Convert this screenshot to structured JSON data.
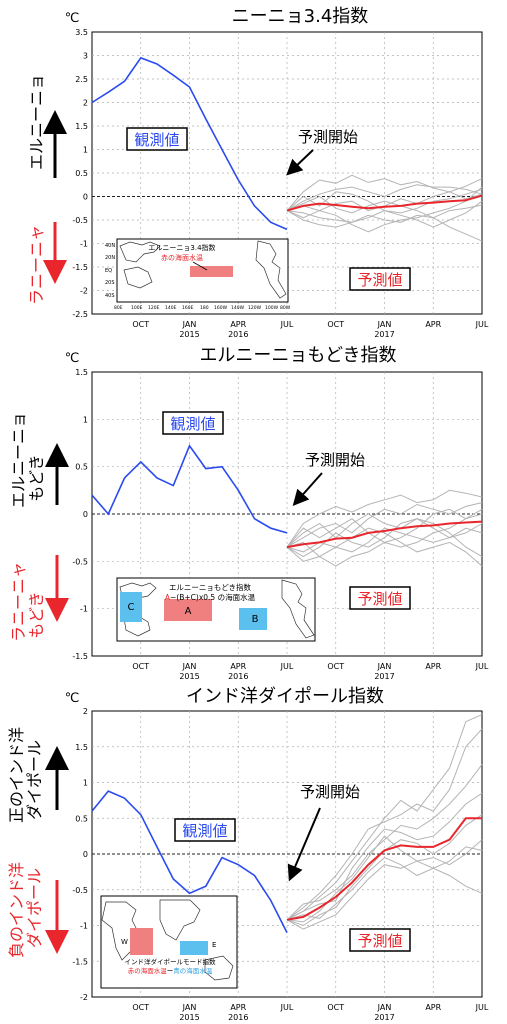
{
  "unit": "℃",
  "tick_labels": {
    "x_months": [
      "OCT",
      "JAN",
      "APR",
      "JUL",
      "OCT",
      "JAN",
      "APR",
      "JUL"
    ],
    "x_years": [
      "2015",
      "2016",
      "2017"
    ]
  },
  "annotations": {
    "observed": "観測値",
    "forecast": "予測値",
    "forecast_start": "予測開始"
  },
  "colors": {
    "observed": "#2b4bf0",
    "ensemble_mean": "#e8262b",
    "members": "#b4b4b4",
    "zero_line": "#222222",
    "grid": "#b0b0b0",
    "up_arrow": "#000000",
    "down_arrow": "#e8262b",
    "map_box_red": "#f08080",
    "map_box_blue": "#5bc0ee"
  },
  "chart_data": [
    {
      "type": "line",
      "title": "ニーニョ3.4指数",
      "ylim": [
        -2.5,
        3.5
      ],
      "yticks": [
        "3.5",
        "3",
        "2.5",
        "2",
        "1.5",
        "1",
        "0.5",
        "0",
        "-0.5",
        "-1",
        "-1.5",
        "-2",
        "-2.5"
      ],
      "up_label": "エルニーニョ",
      "down_label": "ラニーニャ",
      "x_axis": "months since Jul 2015 (0 = JUL 2015, 24 = JUL 2017)",
      "observed": {
        "x": [
          0,
          1,
          2,
          3,
          4,
          5,
          6,
          7,
          8,
          9,
          10,
          11,
          12
        ],
        "y": [
          2.0,
          2.22,
          2.45,
          2.95,
          2.82,
          2.58,
          2.33,
          1.65,
          1.0,
          0.35,
          -0.2,
          -0.55,
          -0.7
        ]
      },
      "ensemble_mean": {
        "x": [
          12,
          13,
          14,
          15,
          16,
          17,
          18,
          19,
          20,
          21,
          22,
          23,
          24
        ],
        "y": [
          -0.3,
          -0.2,
          -0.15,
          -0.18,
          -0.22,
          -0.25,
          -0.22,
          -0.2,
          -0.15,
          -0.13,
          -0.1,
          -0.08,
          0.02
        ]
      },
      "members_x": [
        12,
        13,
        14,
        15,
        16,
        17,
        18,
        19,
        20,
        21,
        22,
        23,
        24
      ],
      "members": [
        [
          -0.3,
          0.1,
          0.35,
          0.28,
          0.45,
          0.3,
          0.38,
          0.25,
          0.32,
          0.18,
          0.1,
          0.22,
          0.38
        ],
        [
          -0.3,
          -0.1,
          0.05,
          0.15,
          0.2,
          0.1,
          0.0,
          0.15,
          0.25,
          0.2,
          0.2,
          0.15,
          0.05
        ],
        [
          -0.3,
          -0.2,
          -0.3,
          -0.15,
          -0.1,
          -0.3,
          -0.2,
          -0.05,
          -0.15,
          0.0,
          0.1,
          -0.05,
          0.05
        ],
        [
          -0.3,
          -0.35,
          -0.45,
          -0.5,
          -0.55,
          -0.4,
          -0.5,
          -0.55,
          -0.4,
          -0.45,
          -0.3,
          -0.25,
          -0.18
        ],
        [
          -0.3,
          -0.45,
          -0.3,
          -0.4,
          -0.6,
          -0.75,
          -0.6,
          -0.5,
          -0.45,
          -0.35,
          -0.25,
          -0.1,
          0.2
        ],
        [
          -0.3,
          -0.5,
          -0.6,
          -0.65,
          -0.55,
          -0.45,
          -0.3,
          -0.35,
          -0.25,
          -0.1,
          -0.05,
          0.05,
          0.15
        ],
        [
          -0.3,
          -0.15,
          0.0,
          -0.25,
          -0.35,
          -0.2,
          -0.1,
          -0.2,
          -0.3,
          -0.45,
          -0.65,
          -0.8,
          -0.95
        ],
        [
          -0.3,
          0.0,
          -0.2,
          0.1,
          0.05,
          -0.1,
          -0.3,
          -0.4,
          -0.5,
          -0.65,
          -0.5,
          -0.35,
          -0.1
        ]
      ],
      "inset_map": {
        "title": "エルニーニョ3.4指数",
        "subtitle": "赤の海面水温",
        "lat_labels": [
          "40N",
          "20N",
          "EQ",
          "20S",
          "40S"
        ],
        "lon_labels": [
          "80E",
          "100E",
          "120E",
          "140E",
          "160E",
          "180",
          "160W",
          "140W",
          "120W",
          "100W",
          "80W"
        ]
      }
    },
    {
      "type": "line",
      "title": "エルニーニョもどき指数",
      "ylim": [
        -1.5,
        1.5
      ],
      "yticks": [
        "1.5",
        "1",
        "0.5",
        "0",
        "-0.5",
        "-1",
        "-1.5"
      ],
      "up_label": [
        "エルニーニョ",
        "もどき"
      ],
      "down_label": [
        "ラニーニャ",
        "もどき"
      ],
      "x_axis": "months since Jul 2015 (0 = JUL 2015, 24 = JUL 2017)",
      "observed": {
        "x": [
          0,
          1,
          2,
          3,
          4,
          5,
          6,
          7,
          8,
          9,
          10,
          11,
          12
        ],
        "y": [
          0.2,
          0.0,
          0.38,
          0.55,
          0.38,
          0.3,
          0.72,
          0.48,
          0.5,
          0.25,
          -0.05,
          -0.15,
          -0.2
        ]
      },
      "ensemble_mean": {
        "x": [
          12,
          13,
          14,
          15,
          16,
          17,
          18,
          19,
          20,
          21,
          22,
          23,
          24
        ],
        "y": [
          -0.35,
          -0.32,
          -0.3,
          -0.26,
          -0.25,
          -0.2,
          -0.18,
          -0.15,
          -0.13,
          -0.12,
          -0.1,
          -0.09,
          -0.08
        ]
      },
      "members_x": [
        12,
        13,
        14,
        15,
        16,
        17,
        18,
        19,
        20,
        21,
        22,
        23,
        24
      ],
      "members": [
        [
          -0.35,
          -0.1,
          0.0,
          0.08,
          0.02,
          0.1,
          0.15,
          0.2,
          0.12,
          0.15,
          0.25,
          0.22,
          0.18
        ],
        [
          -0.35,
          -0.25,
          -0.15,
          -0.1,
          -0.2,
          -0.05,
          0.05,
          0.0,
          0.1,
          0.05,
          0.0,
          0.08,
          0.12
        ],
        [
          -0.35,
          -0.45,
          -0.35,
          -0.2,
          -0.3,
          -0.35,
          -0.25,
          -0.1,
          -0.05,
          -0.15,
          -0.25,
          -0.2,
          -0.1
        ],
        [
          -0.35,
          -0.5,
          -0.45,
          -0.55,
          -0.45,
          -0.4,
          -0.3,
          -0.35,
          -0.3,
          -0.2,
          -0.15,
          -0.05,
          0.0
        ],
        [
          -0.35,
          -0.3,
          -0.45,
          -0.35,
          -0.25,
          -0.15,
          -0.2,
          -0.3,
          -0.4,
          -0.35,
          -0.3,
          -0.4,
          -0.55
        ],
        [
          -0.35,
          -0.2,
          -0.1,
          -0.25,
          -0.1,
          0.0,
          -0.1,
          -0.15,
          -0.05,
          -0.1,
          -0.2,
          -0.35,
          -0.45
        ],
        [
          -0.35,
          -0.4,
          -0.3,
          -0.35,
          -0.4,
          -0.3,
          -0.15,
          -0.2,
          -0.25,
          -0.3,
          -0.25,
          -0.15,
          -0.2
        ],
        [
          -0.35,
          -0.15,
          -0.25,
          -0.15,
          -0.05,
          -0.2,
          -0.3,
          -0.25,
          -0.15,
          0.0,
          0.05,
          -0.05,
          0.05
        ]
      ],
      "inset_map": {
        "title": "エルニーニョもどき指数",
        "formula_a": "A",
        "formula_rest": "−(B+C)x0.5 の海面水温",
        "box_labels": [
          "A",
          "B",
          "C"
        ]
      }
    },
    {
      "type": "line",
      "title": "インド洋ダイポール指数",
      "ylim": [
        -2,
        2
      ],
      "yticks": [
        "2",
        "1.5",
        "1",
        "0.5",
        "0",
        "-0.5",
        "-1",
        "-1.5",
        "-2"
      ],
      "up_label": [
        "正のインド洋",
        "ダイポール"
      ],
      "down_label": [
        "負のインド洋",
        "ダイポール"
      ],
      "x_axis": "months since Jul 2015 (0 = JUL 2015, 24 = JUL 2017)",
      "observed": {
        "x": [
          0,
          1,
          2,
          3,
          4,
          5,
          6,
          7,
          8,
          9,
          10,
          11,
          12
        ],
        "y": [
          0.6,
          0.88,
          0.78,
          0.55,
          0.1,
          -0.35,
          -0.55,
          -0.45,
          -0.05,
          -0.15,
          -0.3,
          -0.65,
          -1.1
        ]
      },
      "ensemble_mean": {
        "x": [
          12,
          13,
          14,
          15,
          16,
          17,
          18,
          19,
          20,
          21,
          22,
          23,
          24
        ],
        "y": [
          -0.92,
          -0.88,
          -0.75,
          -0.6,
          -0.4,
          -0.15,
          0.05,
          0.12,
          0.1,
          0.1,
          0.2,
          0.5,
          0.5
        ]
      },
      "members_x": [
        12,
        13,
        14,
        15,
        16,
        17,
        18,
        19,
        20,
        21,
        22,
        23,
        24
      ],
      "members": [
        [
          -0.92,
          -0.8,
          -0.6,
          -0.4,
          -0.1,
          0.2,
          0.5,
          0.75,
          0.6,
          0.9,
          1.2,
          1.85,
          1.95
        ],
        [
          -0.92,
          -0.75,
          -0.55,
          -0.3,
          0.0,
          0.35,
          0.45,
          0.55,
          0.7,
          0.6,
          0.9,
          1.5,
          1.75
        ],
        [
          -0.92,
          -0.7,
          -0.65,
          -0.5,
          -0.3,
          0.0,
          0.2,
          0.4,
          0.35,
          0.5,
          0.7,
          0.95,
          1.25
        ],
        [
          -0.92,
          -1.0,
          -0.85,
          -0.75,
          -0.45,
          -0.2,
          0.05,
          0.2,
          0.15,
          0.0,
          0.15,
          0.4,
          0.55
        ],
        [
          -0.92,
          -1.05,
          -0.95,
          -0.85,
          -0.6,
          -0.35,
          -0.15,
          -0.2,
          -0.1,
          -0.05,
          -0.15,
          0.0,
          0.2
        ],
        [
          -0.92,
          -0.85,
          -0.9,
          -0.7,
          -0.5,
          -0.25,
          -0.05,
          -0.15,
          -0.3,
          -0.2,
          -0.3,
          -0.45,
          -0.55
        ],
        [
          -0.92,
          -0.95,
          -0.8,
          -0.55,
          -0.35,
          -0.05,
          0.25,
          0.05,
          -0.1,
          -0.2,
          -0.1,
          0.1,
          0.05
        ],
        [
          -0.92,
          -0.8,
          -0.7,
          -0.65,
          -0.2,
          0.1,
          0.35,
          0.3,
          0.2,
          0.25,
          0.45,
          0.7,
          0.85
        ]
      ],
      "inset_map": {
        "title": "インド洋ダイポールモード指数",
        "caption_red": "赤の海面水温",
        "caption_mid": "ー",
        "caption_blue": "青の海面水温",
        "box_labels": [
          "W",
          "E"
        ]
      }
    }
  ]
}
